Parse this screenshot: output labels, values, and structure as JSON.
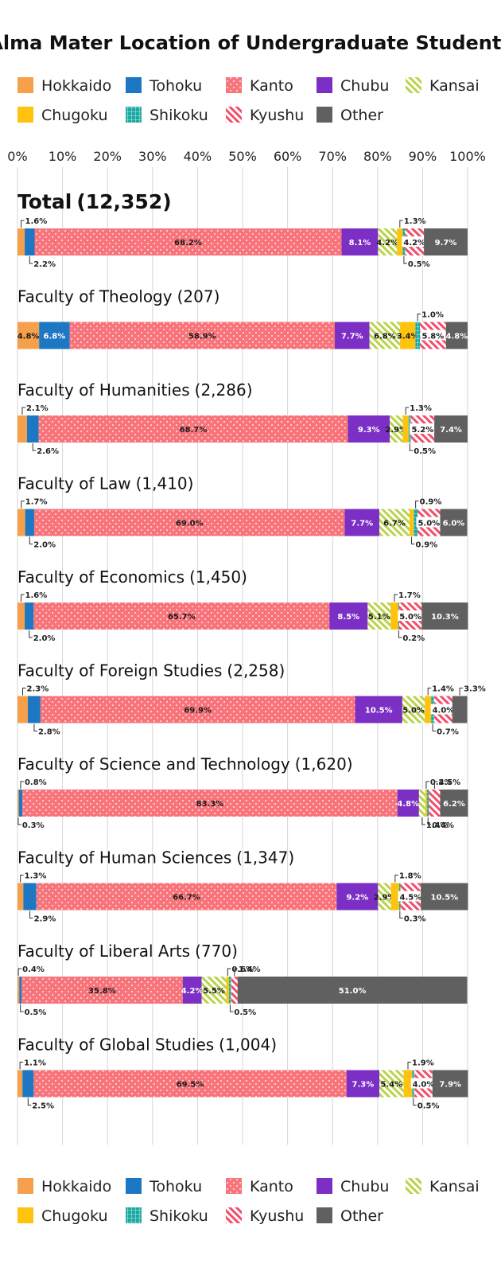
{
  "chart_data": {
    "type": "bar",
    "orientation": "horizontal-stacked-100",
    "title": "Alma Mater Location of Undergraduate Students",
    "xlim": [
      0,
      100
    ],
    "x_ticks": [
      "0%",
      "10%",
      "20%",
      "30%",
      "40%",
      "50%",
      "60%",
      "70%",
      "80%",
      "90%",
      "100%"
    ],
    "grid": true,
    "legend_placement": "top and bottom",
    "series": [
      {
        "name": "Hokkaido",
        "color": "#f7a04b",
        "pattern": "solid"
      },
      {
        "name": "Tohoku",
        "color": "#1d77c2",
        "pattern": "solid"
      },
      {
        "name": "Kanto",
        "color": "#f7747a",
        "pattern": "dots"
      },
      {
        "name": "Chubu",
        "color": "#7b2fc4",
        "pattern": "solid"
      },
      {
        "name": "Kansai",
        "color": "#b8d44a",
        "pattern": "diagonal"
      },
      {
        "name": "Chugoku",
        "color": "#ffc20e",
        "pattern": "solid"
      },
      {
        "name": "Shikoku",
        "color": "#1ba8a0",
        "pattern": "grid"
      },
      {
        "name": "Kyushu",
        "color": "#f24d6a",
        "pattern": "diagonal"
      },
      {
        "name": "Other",
        "color": "#606060",
        "pattern": "solid"
      }
    ],
    "categories": [
      {
        "label": "Total",
        "count": "(12,352)",
        "values": [
          1.6,
          2.2,
          68.2,
          8.1,
          4.2,
          1.3,
          0.5,
          4.2,
          9.7
        ],
        "inside": [
          "",
          "",
          "68.2%",
          "8.1%",
          "4.2%",
          "",
          "",
          "4.2%",
          "9.7%"
        ],
        "above": [
          "1.6%",
          "",
          "",
          "",
          "",
          "1.3%",
          "",
          "",
          ""
        ],
        "below": [
          "",
          "2.2%",
          "",
          "",
          "",
          "",
          "0.5%",
          "",
          ""
        ]
      },
      {
        "label": "Faculty of Theology",
        "count": "(207)",
        "values": [
          4.8,
          6.8,
          58.9,
          7.7,
          6.8,
          3.4,
          1.0,
          5.8,
          4.8
        ],
        "inside": [
          "4.8%",
          "6.8%",
          "58.9%",
          "7.7%",
          "6.8%",
          "3.4%",
          "",
          "5.8%",
          "4.8%"
        ],
        "above": [
          "",
          "",
          "",
          "",
          "",
          "",
          "1.0%",
          "",
          ""
        ],
        "below": [
          "",
          "",
          "",
          "",
          "",
          "",
          "",
          "",
          ""
        ]
      },
      {
        "label": "Faculty of Humanities",
        "count": "(2,286)",
        "values": [
          2.1,
          2.6,
          68.7,
          9.3,
          2.9,
          1.3,
          0.5,
          5.2,
          7.4
        ],
        "inside": [
          "",
          "",
          "68.7%",
          "9.3%",
          "2.9%",
          "",
          "",
          "5.2%",
          "7.4%"
        ],
        "above": [
          "2.1%",
          "",
          "",
          "",
          "",
          "1.3%",
          "",
          "",
          ""
        ],
        "below": [
          "",
          "2.6%",
          "",
          "",
          "",
          "",
          "0.5%",
          "",
          ""
        ]
      },
      {
        "label": "Faculty of Law",
        "count": "(1,410)",
        "values": [
          1.7,
          2.0,
          69.0,
          7.7,
          6.7,
          0.9,
          0.9,
          5.0,
          6.0
        ],
        "inside": [
          "",
          "",
          "69.0%",
          "7.7%",
          "6.7%",
          "",
          "",
          "5.0%",
          "6.0%"
        ],
        "above": [
          "1.7%",
          "",
          "",
          "",
          "",
          "",
          "0.9%",
          "",
          ""
        ],
        "below": [
          "",
          "2.0%",
          "",
          "",
          "",
          "0.9%",
          "",
          "",
          ""
        ]
      },
      {
        "label": "Faculty of Economics",
        "count": "(1,450)",
        "values": [
          1.6,
          2.0,
          65.7,
          8.5,
          5.1,
          1.7,
          0.2,
          5.0,
          10.3
        ],
        "inside": [
          "",
          "",
          "65.7%",
          "8.5%",
          "5.1%",
          "",
          "",
          "5.0%",
          "10.3%"
        ],
        "above": [
          "1.6%",
          "",
          "",
          "",
          "",
          "1.7%",
          "",
          "",
          ""
        ],
        "below": [
          "",
          "2.0%",
          "",
          "",
          "",
          "",
          "0.2%",
          "",
          ""
        ]
      },
      {
        "label": "Faculty of Foreign Studies",
        "count": "(2,258)",
        "values": [
          2.3,
          2.8,
          69.9,
          10.5,
          5.0,
          1.4,
          0.7,
          4.0,
          3.3
        ],
        "inside": [
          "",
          "",
          "69.9%",
          "10.5%",
          "5.0%",
          "",
          "",
          "4.0%",
          ""
        ],
        "above": [
          "2.3%",
          "",
          "",
          "",
          "",
          "1.4%",
          "",
          "",
          "3.3%"
        ],
        "below": [
          "",
          "2.8%",
          "",
          "",
          "",
          "",
          "0.7%",
          "",
          ""
        ]
      },
      {
        "label": "Faculty of Science and Technology",
        "count": "(1,620)",
        "values": [
          0.3,
          0.8,
          83.3,
          4.8,
          1.4,
          0.4,
          0.4,
          2.5,
          6.2
        ],
        "inside": [
          "",
          "",
          "83.3%",
          "4.8%",
          "",
          "",
          "",
          "",
          "6.2%"
        ],
        "above": [
          "",
          "0.8%",
          "",
          "",
          "",
          "0.4%",
          "",
          "2.5%",
          ""
        ],
        "below": [
          "0.3%",
          "",
          "",
          "",
          "1.4%",
          "",
          "0.4%",
          "",
          ""
        ]
      },
      {
        "label": "Faculty of Human Sciences",
        "count": "(1,347)",
        "values": [
          1.3,
          2.9,
          66.7,
          9.2,
          2.9,
          1.8,
          0.3,
          4.5,
          10.5
        ],
        "inside": [
          "",
          "",
          "66.7%",
          "9.2%",
          "2.9%",
          "",
          "",
          "4.5%",
          "10.5%"
        ],
        "above": [
          "1.3%",
          "",
          "",
          "",
          "",
          "1.8%",
          "",
          "",
          ""
        ],
        "below": [
          "",
          "2.9%",
          "",
          "",
          "",
          "",
          "0.3%",
          "",
          ""
        ]
      },
      {
        "label": "Faculty of Liberal Arts",
        "count": "(770)",
        "values": [
          0.4,
          0.5,
          35.8,
          4.2,
          5.5,
          0.6,
          0.5,
          1.4,
          51.0
        ],
        "inside": [
          "",
          "",
          "35.8%",
          "4.2%",
          "5.5%",
          "",
          "",
          "",
          "51.0%"
        ],
        "above": [
          "0.4%",
          "",
          "",
          "",
          "",
          "0.6%",
          "",
          "1.4%",
          ""
        ],
        "below": [
          "",
          "0.5%",
          "",
          "",
          "",
          "",
          "0.5%",
          "",
          ""
        ]
      },
      {
        "label": "Faculty of Global Studies",
        "count": "(1,004)",
        "values": [
          1.1,
          2.5,
          69.5,
          7.3,
          5.4,
          1.9,
          0.5,
          4.0,
          7.9
        ],
        "inside": [
          "",
          "",
          "69.5%",
          "7.3%",
          "5.4%",
          "",
          "",
          "4.0%",
          "7.9%"
        ],
        "above": [
          "1.1%",
          "",
          "",
          "",
          "",
          "1.9%",
          "",
          "",
          ""
        ],
        "below": [
          "",
          "2.5%",
          "",
          "",
          "",
          "",
          "0.5%",
          "",
          ""
        ]
      }
    ]
  }
}
